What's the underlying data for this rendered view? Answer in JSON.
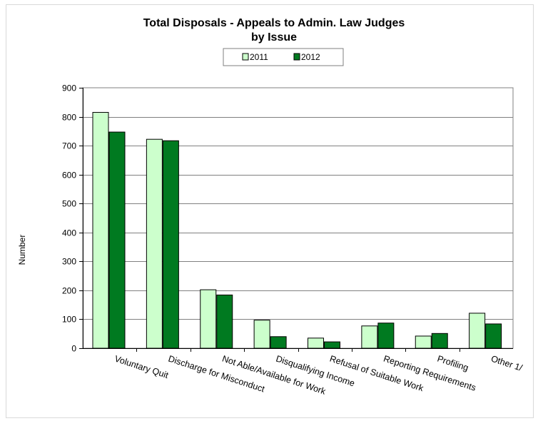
{
  "chart_data": {
    "type": "bar",
    "title_line1": "Total Disposals -  Appeals to Admin. Law Judges",
    "title_line2": "by Issue",
    "ylabel": "Number",
    "xlabel": "",
    "ylim": [
      0,
      900
    ],
    "yticks": [
      0,
      100,
      200,
      300,
      400,
      500,
      600,
      700,
      800,
      900
    ],
    "grid": true,
    "legend_position": "top-center",
    "categories": [
      "Voluntary Quit",
      "Discharge for Misconduct",
      "Not Able/Available for Work",
      "Disqualifying Income",
      "Refusal of Suitable Work",
      "Reporting Requirements",
      "Profiling",
      "Other 1/"
    ],
    "series": [
      {
        "name": "2011",
        "color": "#ccffcc",
        "values": [
          815,
          722,
          202,
          97,
          35,
          77,
          42,
          121
        ]
      },
      {
        "name": "2012",
        "color": "#007a20",
        "values": [
          747,
          717,
          184,
          40,
          22,
          87,
          51,
          84
        ]
      }
    ]
  }
}
